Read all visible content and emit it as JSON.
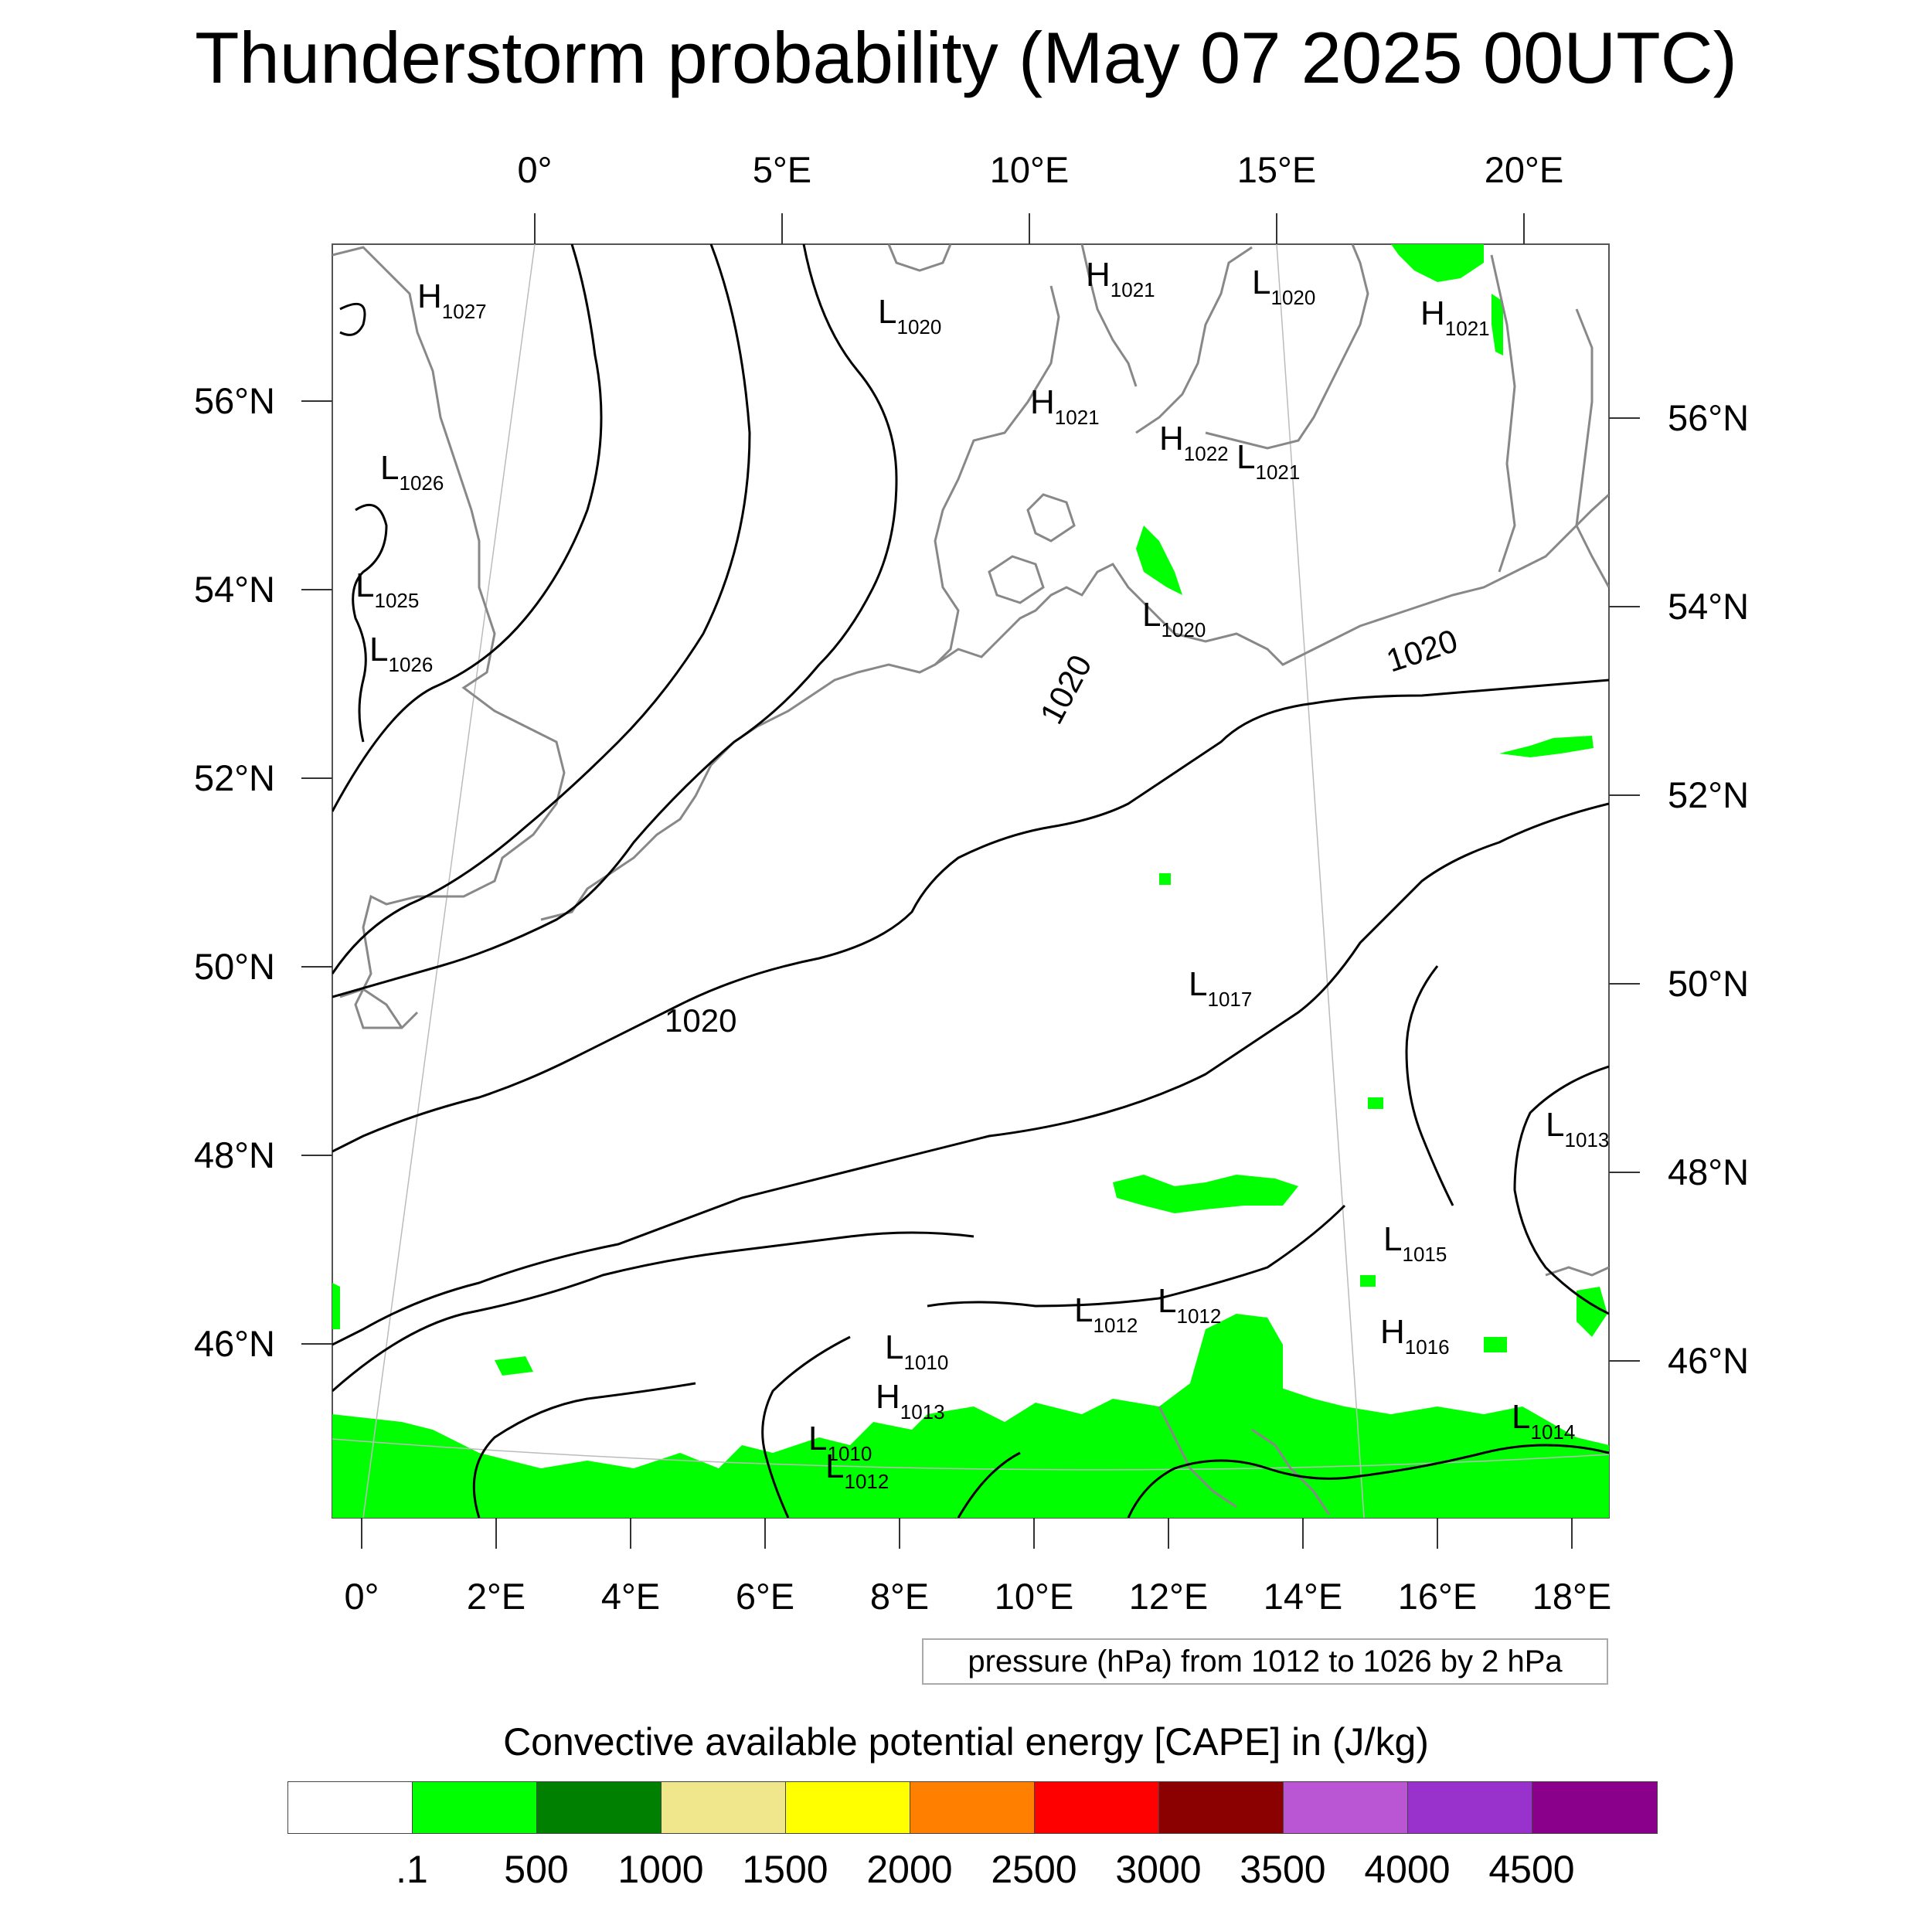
{
  "title": "Thunderstorm probability (May 07 2025 00UTC)",
  "axes": {
    "top_lon_labels": [
      "0°",
      "5°E",
      "10°E",
      "15°E",
      "20°E"
    ],
    "bottom_lon_labels": [
      "0°",
      "2°E",
      "4°E",
      "6°E",
      "8°E",
      "10°E",
      "12°E",
      "14°E",
      "16°E",
      "18°E"
    ],
    "left_lat_labels": [
      "56°N",
      "54°N",
      "52°N",
      "50°N",
      "48°N",
      "46°N"
    ],
    "right_lat_labels": [
      "56°N",
      "54°N",
      "52°N",
      "50°N",
      "48°N",
      "46°N"
    ]
  },
  "pressure_systems": [
    {
      "type": "H",
      "value": "1027"
    },
    {
      "type": "L",
      "value": "1026"
    },
    {
      "type": "L",
      "value": "1025"
    },
    {
      "type": "L",
      "value": "1026"
    },
    {
      "type": "L",
      "value": "1020"
    },
    {
      "type": "H",
      "value": "1021"
    },
    {
      "type": "L",
      "value": "1020"
    },
    {
      "type": "H",
      "value": "1021"
    },
    {
      "type": "H",
      "value": "1021"
    },
    {
      "type": "H",
      "value": "1022"
    },
    {
      "type": "L",
      "value": "1021"
    },
    {
      "type": "L",
      "value": "1020"
    },
    {
      "type": "L",
      "value": "1017"
    },
    {
      "type": "L",
      "value": "1013"
    },
    {
      "type": "L",
      "value": "1015"
    },
    {
      "type": "L",
      "value": "1012"
    },
    {
      "type": "L",
      "value": "1012"
    },
    {
      "type": "L",
      "value": "1010"
    },
    {
      "type": "H",
      "value": "1013"
    },
    {
      "type": "L",
      "value": "1010"
    },
    {
      "type": "L",
      "value": "1012"
    },
    {
      "type": "H",
      "value": "1016"
    },
    {
      "type": "L",
      "value": "1014"
    }
  ],
  "contour_labels": [
    "1020",
    "1020",
    "1020"
  ],
  "pressure_note": "pressure (hPa) from 1012 to 1026 by 2 hPa",
  "colorbar": {
    "title": "Convective available potential energy [CAPE] in (J/kg)",
    "colors": [
      "#ffffff",
      "#00ff00",
      "#008000",
      "#f0e68c",
      "#ffff00",
      "#ff8000",
      "#ff0000",
      "#8b0000",
      "#ba55d3",
      "#9932cc",
      "#8b008b"
    ],
    "labels": [
      ".1",
      "500",
      "1000",
      "1500",
      "2000",
      "2500",
      "3000",
      "3500",
      "4000",
      "4500"
    ]
  }
}
